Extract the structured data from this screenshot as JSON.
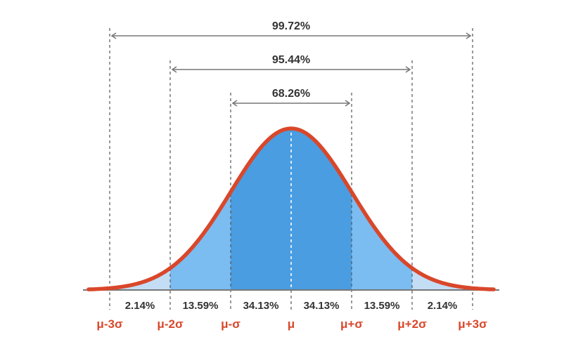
{
  "chart_data": {
    "type": "area",
    "title": "",
    "xlabel": "",
    "ylabel": "",
    "curve": "normal",
    "grid": false,
    "x_ticks": [
      "μ-3σ",
      "μ-2σ",
      "μ-σ",
      "μ",
      "μ+σ",
      "μ+2σ",
      "μ+3σ"
    ],
    "x_tick_values": [
      -3,
      -2,
      -1,
      0,
      1,
      2,
      3
    ],
    "xlim": [
      -3.35,
      3.35
    ],
    "band_values": [
      {
        "from": -3,
        "to": -2,
        "label": "2.14%"
      },
      {
        "from": -2,
        "to": -1,
        "label": "13.59%"
      },
      {
        "from": -1,
        "to": 0,
        "label": "34.13%"
      },
      {
        "from": 0,
        "to": 1,
        "label": "34.13%"
      },
      {
        "from": 1,
        "to": 2,
        "label": "13.59%"
      },
      {
        "from": 2,
        "to": 3,
        "label": "2.14%"
      }
    ],
    "ranges": [
      {
        "from": -3,
        "to": 3,
        "label": "99.72%"
      },
      {
        "from": -2,
        "to": 2,
        "label": "95.44%"
      },
      {
        "from": -1,
        "to": 1,
        "label": "68.26%"
      }
    ],
    "colors": {
      "curve": "#d9472b",
      "sigma_labels": "#d9472b",
      "band_inner": "#4a9de0",
      "band_middle": "#7bbcf1",
      "band_outer": "#c3ddf5",
      "axis": "#777777",
      "dashed": "#555555",
      "arrows": "#777777",
      "text": "#333333"
    }
  }
}
